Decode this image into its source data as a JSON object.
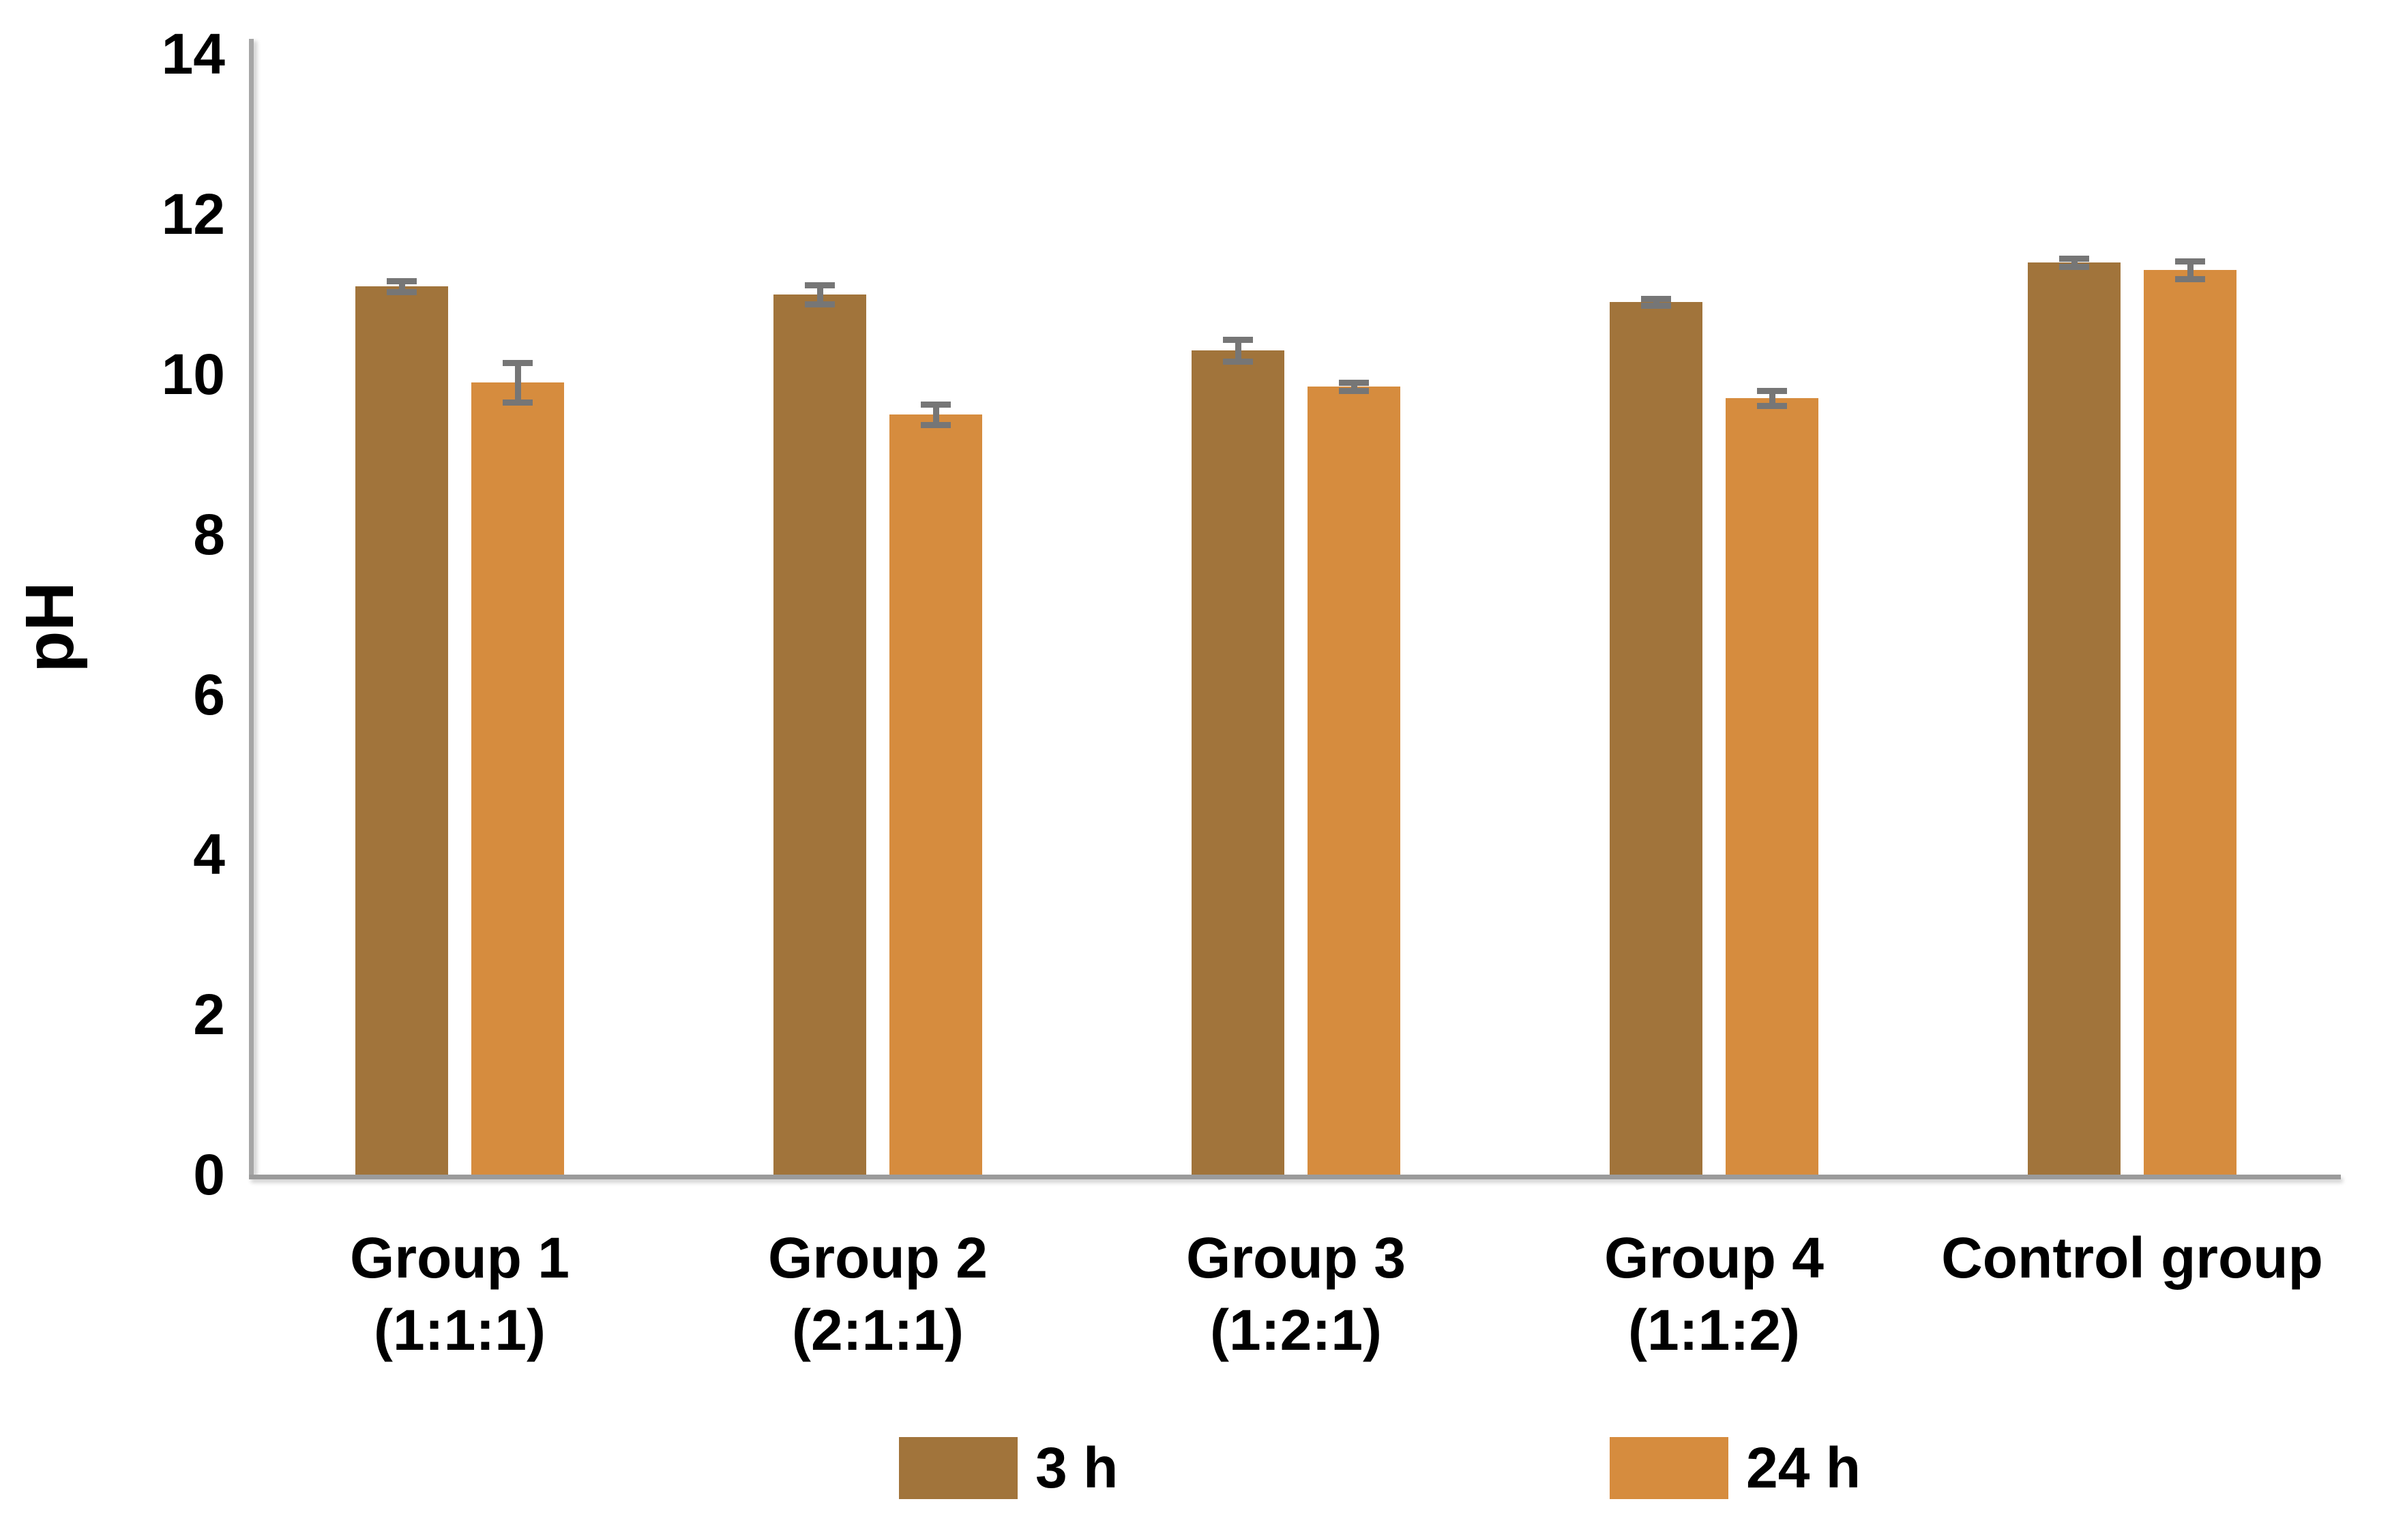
{
  "chart_data": {
    "type": "bar",
    "title": "",
    "xlabel": "",
    "ylabel": "pH",
    "ylim": [
      0,
      14
    ],
    "yticks": [
      0,
      2,
      4,
      6,
      8,
      10,
      12,
      14
    ],
    "grid": false,
    "legend_position": "bottom",
    "axis_color": "#a6a6a6",
    "error_bar_color": "#767676",
    "categories": [
      {
        "line1": "Group 1",
        "line2": "(1:1:1)"
      },
      {
        "line1": "Group 2",
        "line2": "(2:1:1)"
      },
      {
        "line1": "Group 3",
        "line2": "(1:2:1)"
      },
      {
        "line1": "Group 4",
        "line2": "(1:1:2)"
      },
      {
        "line1": "Control group",
        "line2": ""
      }
    ],
    "series": [
      {
        "name": "3 h",
        "color": "#A1743B",
        "values": [
          11.1,
          11.0,
          10.3,
          10.9,
          11.4
        ],
        "errors": [
          0.07,
          0.12,
          0.14,
          0.04,
          0.05
        ]
      },
      {
        "name": "24 h",
        "color": "#D68C3E",
        "values": [
          9.9,
          9.5,
          9.85,
          9.7,
          11.3
        ],
        "errors": [
          0.25,
          0.13,
          0.05,
          0.09,
          0.11
        ]
      }
    ]
  }
}
